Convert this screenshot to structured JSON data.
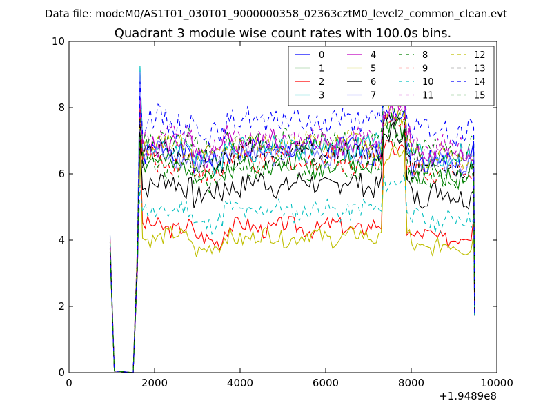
{
  "chart_data": {
    "type": "line",
    "suptitle": "Data file: modeM0/AS1T01_030T01_9000000358_02363cztM0_level2_common_clean.evt",
    "title": "Quadrant 3 module wise count rates with 100.0s bins.",
    "xlabel": "",
    "ylabel": "",
    "x_offset_label": "+1.9489e8",
    "xlim": [
      0,
      10000
    ],
    "ylim": [
      0,
      10
    ],
    "x_ticks": [
      0,
      2000,
      4000,
      6000,
      8000,
      10000
    ],
    "y_ticks": [
      0,
      2,
      4,
      6,
      8,
      10
    ],
    "grid": false,
    "legend_placement": "top-right",
    "legend_columns": 4,
    "series": [
      {
        "name": "0",
        "color": "#0000ff",
        "dash": "solid",
        "level": 6.7,
        "amp": 0.35,
        "peak": 8.0,
        "end": 7.0,
        "seed": 1
      },
      {
        "name": "1",
        "color": "#008000",
        "dash": "solid",
        "level": 6.3,
        "amp": 0.35,
        "peak": 7.6,
        "end": 6.0,
        "seed": 2
      },
      {
        "name": "2",
        "color": "#ff0000",
        "dash": "solid",
        "level": 4.4,
        "amp": 0.25,
        "peak": 7.2,
        "end": 4.7,
        "seed": 3
      },
      {
        "name": "3",
        "color": "#00bfbf",
        "dash": "solid",
        "level": 6.8,
        "amp": 0.35,
        "peak": 9.3,
        "end": 6.2,
        "seed": 4
      },
      {
        "name": "4",
        "color": "#bf00bf",
        "dash": "solid",
        "level": 6.9,
        "amp": 0.35,
        "peak": 8.2,
        "end": 6.4,
        "seed": 5
      },
      {
        "name": "5",
        "color": "#bfbf00",
        "dash": "solid",
        "level": 4.1,
        "amp": 0.25,
        "peak": 7.0,
        "end": 4.2,
        "seed": 6
      },
      {
        "name": "6",
        "color": "#000000",
        "dash": "solid",
        "level": 5.7,
        "amp": 0.35,
        "peak": 7.4,
        "end": 5.5,
        "seed": 7
      },
      {
        "name": "7",
        "color": "#7f7fff",
        "dash": "solid",
        "level": 6.6,
        "amp": 0.35,
        "peak": 9.2,
        "end": 6.6,
        "seed": 8
      },
      {
        "name": "8",
        "color": "#008000",
        "dash": "dashed",
        "level": 7.0,
        "amp": 0.35,
        "peak": 8.0,
        "end": 7.2,
        "seed": 9
      },
      {
        "name": "9",
        "color": "#ff0000",
        "dash": "dashed",
        "level": 6.4,
        "amp": 0.35,
        "peak": 7.8,
        "end": 6.0,
        "seed": 10
      },
      {
        "name": "10",
        "color": "#00bfbf",
        "dash": "dashed",
        "level": 4.9,
        "amp": 0.3,
        "peak": 6.0,
        "end": 4.7,
        "seed": 11
      },
      {
        "name": "11",
        "color": "#bf00bf",
        "dash": "dashed",
        "level": 7.1,
        "amp": 0.35,
        "peak": 8.2,
        "end": 6.5,
        "seed": 12
      },
      {
        "name": "12",
        "color": "#bfbf00",
        "dash": "dashed",
        "level": 6.9,
        "amp": 0.35,
        "peak": 7.8,
        "end": 6.4,
        "seed": 13
      },
      {
        "name": "13",
        "color": "#000000",
        "dash": "dashed",
        "level": 6.6,
        "amp": 0.35,
        "peak": 7.6,
        "end": 6.2,
        "seed": 14
      },
      {
        "name": "14",
        "color": "#0000ff",
        "dash": "dashed",
        "level": 7.6,
        "amp": 0.4,
        "peak": 8.6,
        "end": 7.4,
        "seed": 15
      },
      {
        "name": "15",
        "color": "#008000",
        "dash": "dashed",
        "level": 6.2,
        "amp": 0.35,
        "peak": 7.4,
        "end": 5.8,
        "seed": 16
      }
    ]
  }
}
